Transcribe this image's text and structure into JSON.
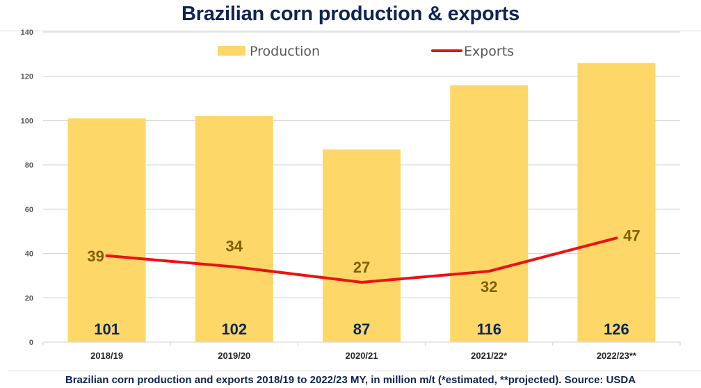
{
  "chart_data": {
    "type": "bar",
    "title": "Brazilian corn production & exports",
    "caption": "Brazilian corn production and exports 2018/19 to 2022/23 MY, in million m/t (*estimated, **projected). Source: USDA",
    "xlabel": "",
    "ylabel": "",
    "ylim": [
      0,
      140
    ],
    "yticks": [
      0,
      20,
      40,
      60,
      80,
      100,
      120,
      140
    ],
    "grid": true,
    "legend_position": "top",
    "categories": [
      "2018/19",
      "2019/20",
      "2020/21",
      "2021/22*",
      "2022/23**"
    ],
    "series": [
      {
        "name": "Production",
        "type": "bar",
        "color": "#fdd868",
        "values": [
          101,
          102,
          87,
          116,
          126
        ]
      },
      {
        "name": "Exports",
        "type": "line",
        "color": "#ee1111",
        "values": [
          39,
          34,
          27,
          32,
          47
        ]
      }
    ],
    "colors": {
      "title": "#0d2454",
      "bar_label": "#0d2454",
      "line_label": "#7f6000",
      "grid": "#d9d9d9",
      "tick": "#595959"
    }
  }
}
